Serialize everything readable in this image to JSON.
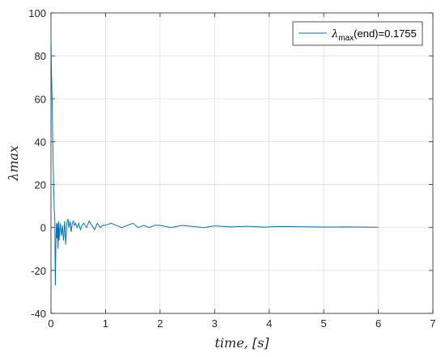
{
  "chart_data": {
    "type": "line",
    "xlabel": "time, [s]",
    "ylabel": "λmax",
    "xlim": [
      0,
      7
    ],
    "ylim": [
      -40,
      100
    ],
    "xticks": [
      0,
      1,
      2,
      3,
      4,
      5,
      6,
      7
    ],
    "yticks": [
      -40,
      -20,
      0,
      20,
      40,
      60,
      80,
      100
    ],
    "grid": true,
    "legend": {
      "position": "top-right",
      "entries": [
        {
          "symbol": "λ",
          "subscript": "max",
          "suffix": "(end)=0.1755"
        }
      ]
    },
    "series": [
      {
        "color": "#0072BD",
        "x": [
          0,
          0.01,
          0.02,
          0.03,
          0.04,
          0.05,
          0.06,
          0.07,
          0.08,
          0.09,
          0.1,
          0.11,
          0.12,
          0.13,
          0.14,
          0.15,
          0.17,
          0.19,
          0.21,
          0.23,
          0.25,
          0.27,
          0.29,
          0.31,
          0.33,
          0.35,
          0.37,
          0.39,
          0.41,
          0.43,
          0.45,
          0.48,
          0.51,
          0.54,
          0.57,
          0.6,
          0.65,
          0.7,
          0.75,
          0.8,
          0.85,
          0.9,
          0.95,
          1.0,
          1.1,
          1.2,
          1.3,
          1.4,
          1.5,
          1.6,
          1.7,
          1.8,
          1.9,
          2.0,
          2.2,
          2.4,
          2.6,
          2.8,
          3.0,
          3.3,
          3.6,
          3.9,
          4.2,
          4.5,
          4.8,
          5.1,
          5.4,
          5.7,
          6.0
        ],
        "y": [
          88,
          72,
          60,
          45,
          30,
          18,
          8,
          4,
          -27,
          -8,
          2,
          -5,
          2,
          -10,
          3,
          -6,
          2,
          -4,
          1,
          -6,
          3,
          -8,
          2,
          4,
          0,
          3,
          -2,
          2,
          3,
          1,
          2,
          0,
          2,
          -1,
          1,
          2,
          0,
          3,
          1,
          -1,
          2,
          0,
          1,
          1,
          2,
          1,
          0,
          1,
          2,
          0,
          1,
          0,
          1,
          1,
          0,
          1,
          0.5,
          0,
          0.8,
          0.3,
          0.6,
          0.2,
          0.5,
          0.4,
          0.3,
          0.2,
          0.3,
          0.2,
          0.1755
        ]
      }
    ]
  }
}
